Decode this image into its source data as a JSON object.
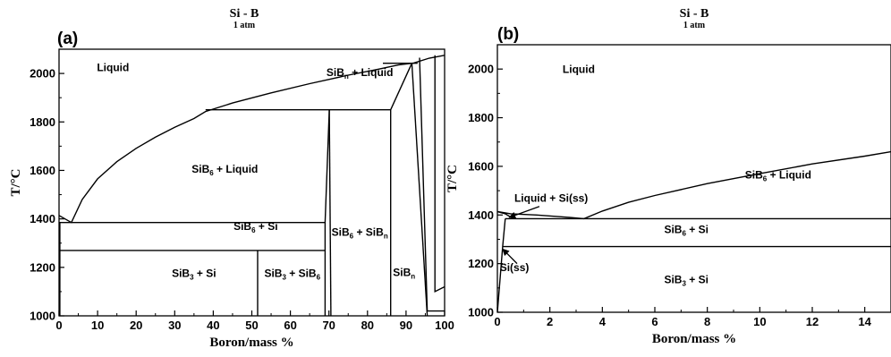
{
  "chart_data": [
    {
      "type": "phase-diagram",
      "panel_label": "(a)",
      "title": "Si - B",
      "subtitle": "1 atm",
      "xlabel": "Boron/mass %",
      "ylabel": "T/°C",
      "xlim": [
        0,
        100
      ],
      "ylim": [
        1000,
        2100
      ],
      "xticks": [
        0,
        10,
        20,
        30,
        40,
        50,
        60,
        70,
        80,
        90,
        100
      ],
      "yticks": [
        1000,
        1200,
        1400,
        1600,
        1800,
        2000
      ],
      "regions": [
        {
          "label": "Liquid",
          "base": "Liquid",
          "sub": "",
          "rest": "",
          "x": 14,
          "y": 2010
        },
        {
          "label": "SiBn + Liquid",
          "base": "SiB",
          "sub": "n",
          "rest": " + Liquid",
          "x": 78,
          "y": 1990
        },
        {
          "label": "SiB6 + Liquid",
          "base": "SiB",
          "sub": "6",
          "rest": " + Liquid",
          "x": 43,
          "y": 1590
        },
        {
          "label": "SiB6 + Si",
          "base": "SiB",
          "sub": "6",
          "rest": " + Si",
          "x": 51,
          "y": 1355
        },
        {
          "label": "SiB6 + SiBn",
          "base": "SiB",
          "sub": "6",
          "rest": " + SiB",
          "sub2": "n",
          "x": 78,
          "y": 1330
        },
        {
          "label": "SiBn",
          "base": "SiB",
          "sub": "n",
          "rest": "",
          "x": 89.5,
          "y": 1165
        },
        {
          "label": "SiB3 + Si",
          "base": "SiB",
          "sub": "3",
          "rest": " + Si",
          "x": 35,
          "y": 1160
        },
        {
          "label": "SiB3 + SiB6",
          "base": "SiB",
          "sub": "3",
          "rest": " + SiB",
          "sub2": "6",
          "x": 60.5,
          "y": 1160
        }
      ],
      "lines": [
        {
          "name": "liquidus-left",
          "points": [
            [
              0,
              1414
            ],
            [
              3.2,
              1385
            ],
            [
              6,
              1480
            ],
            [
              10,
              1565
            ],
            [
              15,
              1636
            ],
            [
              20,
              1691
            ],
            [
              25,
              1737
            ],
            [
              30,
              1778
            ],
            [
              35,
              1814
            ],
            [
              38,
              1843
            ],
            [
              45,
              1878
            ],
            [
              55,
              1920
            ],
            [
              65,
              1958
            ],
            [
              75,
              1993
            ],
            [
              83,
              2018
            ],
            [
              88,
              2035
            ],
            [
              92,
              2043
            ],
            [
              96,
              2063
            ],
            [
              100,
              2075
            ]
          ]
        },
        {
          "name": "solvus-si",
          "points": [
            [
              0.2,
              1000
            ],
            [
              0.2,
              1385
            ]
          ]
        },
        {
          "name": "eutectic-1385",
          "points": [
            [
              0,
              1385
            ],
            [
              69,
              1385
            ]
          ]
        },
        {
          "name": "line-1270",
          "points": [
            [
              0,
              1270
            ],
            [
              69,
              1270
            ]
          ]
        },
        {
          "name": "sib3-line",
          "points": [
            [
              51.5,
              1000
            ],
            [
              51.5,
              1270
            ]
          ]
        },
        {
          "name": "sib6-left",
          "points": [
            [
              69,
              1000
            ],
            [
              69,
              1385
            ],
            [
              70.1,
              1850
            ]
          ]
        },
        {
          "name": "sib6-right",
          "points": [
            [
              70.1,
              1850
            ],
            [
              70.5,
              1000
            ]
          ]
        },
        {
          "name": "peritectic-1850",
          "points": [
            [
              38,
              1850
            ],
            [
              86,
              1850
            ]
          ]
        },
        {
          "name": "sibn-left",
          "points": [
            [
              86,
              1000
            ],
            [
              86,
              1850
            ],
            [
              91.5,
              2042
            ]
          ]
        },
        {
          "name": "sibn-right",
          "points": [
            [
              91.5,
              2042
            ],
            [
              95.5,
              1000
            ]
          ]
        },
        {
          "name": "line-2042",
          "points": [
            [
              84,
              2042
            ],
            [
              93,
              2042
            ]
          ]
        },
        {
          "name": "b-solvus",
          "points": [
            [
              93.5,
              2065
            ],
            [
              95.5,
              1020
            ],
            [
              100,
              1020
            ]
          ]
        },
        {
          "name": "boron-liquidus",
          "points": [
            [
              97.5,
              2075
            ],
            [
              97.5,
              1100
            ],
            [
              100,
              1120
            ]
          ]
        }
      ]
    },
    {
      "type": "phase-diagram",
      "panel_label": "(b)",
      "title": "Si - B",
      "subtitle": "1 atm",
      "xlabel": "Boron/mass %",
      "ylabel": "T/°C",
      "xlim": [
        0,
        15
      ],
      "ylim": [
        1000,
        2100
      ],
      "xticks": [
        0,
        2,
        4,
        6,
        8,
        10,
        12,
        14
      ],
      "yticks": [
        1000,
        1200,
        1400,
        1600,
        1800,
        2000
      ],
      "regions": [
        {
          "label": "Liquid",
          "base": "Liquid",
          "sub": "",
          "rest": "",
          "x": 3.1,
          "y": 1985
        },
        {
          "label": "SiB6 + Liquid",
          "base": "SiB",
          "sub": "6",
          "rest": " + Liquid",
          "x": 10.7,
          "y": 1550
        },
        {
          "label": "Liquid + Si(ss)",
          "base": "Liquid + Si(ss)",
          "sub": "",
          "rest": "",
          "x": 2.05,
          "y": 1455
        },
        {
          "label": "SiB6 + Si",
          "base": "SiB",
          "sub": "6",
          "rest": " + Si",
          "x": 7.2,
          "y": 1325
        },
        {
          "label": "Si(ss)",
          "base": "Si(ss)",
          "sub": "",
          "rest": "",
          "x": 0.65,
          "y": 1170
        },
        {
          "label": "SiB3 + Si",
          "base": "SiB",
          "sub": "3",
          "rest": " + Si",
          "x": 7.2,
          "y": 1120
        }
      ],
      "lines": [
        {
          "name": "liquidus",
          "points": [
            [
              0,
              1414
            ],
            [
              0.5,
              1405
            ],
            [
              1.5,
              1400
            ],
            [
              2.5,
              1392
            ],
            [
              3.3,
              1385
            ],
            [
              4,
              1416
            ],
            [
              5,
              1452
            ],
            [
              6,
              1480
            ],
            [
              8,
              1529
            ],
            [
              10,
              1570
            ],
            [
              12,
              1610
            ],
            [
              14,
              1642
            ],
            [
              15,
              1660
            ]
          ]
        },
        {
          "name": "liquid-si-boundary",
          "points": [
            [
              0,
              1414
            ],
            [
              0.3,
              1405
            ],
            [
              0.6,
              1385
            ]
          ]
        },
        {
          "name": "si-solvus",
          "points": [
            [
              0,
              1000
            ],
            [
              0.2,
              1270
            ],
            [
              0.3,
              1385
            ]
          ]
        },
        {
          "name": "eutectic-1385",
          "points": [
            [
              0.3,
              1385
            ],
            [
              15,
              1385
            ]
          ]
        },
        {
          "name": "line-1270",
          "points": [
            [
              0.2,
              1270
            ],
            [
              15,
              1270
            ]
          ]
        }
      ],
      "annotations": [
        {
          "text": "Liquid + Si(ss)",
          "from": [
            1.6,
            1435
          ],
          "to": [
            0.45,
            1390
          ]
        },
        {
          "text": "Si(ss)",
          "from": [
            0.75,
            1200
          ],
          "to": [
            0.2,
            1260
          ]
        }
      ]
    }
  ]
}
